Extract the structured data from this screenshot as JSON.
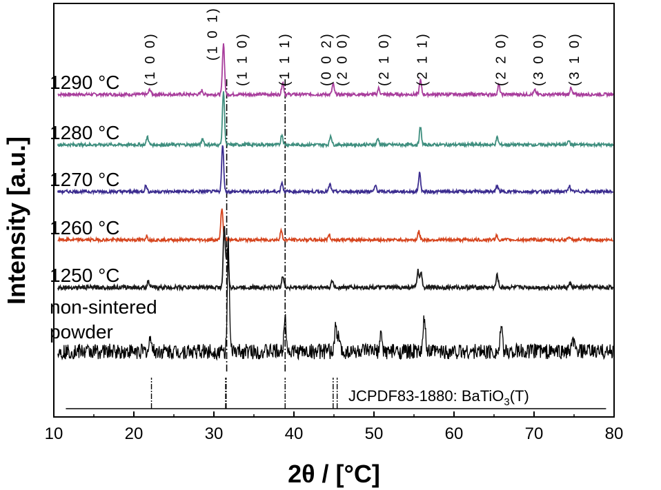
{
  "chart_data": {
    "type": "line",
    "title": "",
    "xlabel": "2θ / [°C]",
    "ylabel": "Intensity [a.u.]",
    "xlim": [
      10,
      80
    ],
    "xticks": [
      10,
      20,
      30,
      40,
      50,
      60,
      70,
      80
    ],
    "series": [
      {
        "name": "1290 °C",
        "color": "#a83d9c",
        "noise": 0.15,
        "peaks": [
          [
            22.0,
            0.25
          ],
          [
            28.5,
            0.2
          ],
          [
            31.2,
            2.5
          ],
          [
            38.6,
            0.6
          ],
          [
            44.9,
            0.5
          ],
          [
            50.6,
            0.3
          ],
          [
            55.8,
            0.7
          ],
          [
            65.6,
            0.45
          ],
          [
            70.1,
            0.2
          ],
          [
            74.6,
            0.3
          ]
        ]
      },
      {
        "name": "1280 °C",
        "color": "#3e8e7e",
        "noise": 0.15,
        "peaks": [
          [
            21.7,
            0.4
          ],
          [
            28.6,
            0.3
          ],
          [
            31.2,
            2.6
          ],
          [
            38.5,
            0.5
          ],
          [
            44.6,
            0.45
          ],
          [
            50.5,
            0.3
          ],
          [
            55.8,
            0.85
          ],
          [
            65.4,
            0.35
          ],
          [
            74.3,
            0.25
          ]
        ]
      },
      {
        "name": "1270 °C",
        "color": "#3b2c8f",
        "noise": 0.15,
        "peaks": [
          [
            21.5,
            0.3
          ],
          [
            31.1,
            2.25
          ],
          [
            38.5,
            0.45
          ],
          [
            44.5,
            0.35
          ],
          [
            50.2,
            0.3
          ],
          [
            55.7,
            0.9
          ],
          [
            65.4,
            0.3
          ],
          [
            74.4,
            0.3
          ]
        ]
      },
      {
        "name": "1260 °C",
        "color": "#d6451e",
        "noise": 0.15,
        "peaks": [
          [
            21.6,
            0.2
          ],
          [
            31.0,
            1.55
          ],
          [
            38.4,
            0.45
          ],
          [
            44.4,
            0.25
          ],
          [
            55.6,
            0.4
          ],
          [
            65.3,
            0.2
          ],
          [
            74.3,
            0.15
          ]
        ]
      },
      {
        "name": "1250 °C",
        "color": "#1a1a1a",
        "noise": 0.2,
        "peaks": [
          [
            21.8,
            0.3
          ],
          [
            31.3,
            3.0
          ],
          [
            31.7,
            1.8
          ],
          [
            38.6,
            0.6
          ],
          [
            44.8,
            0.3
          ],
          [
            55.5,
            0.8
          ],
          [
            55.9,
            0.7
          ],
          [
            65.4,
            0.6
          ],
          [
            74.5,
            0.2
          ]
        ]
      },
      {
        "name": "non-sintered powder",
        "color": "#000000",
        "noise": 0.75,
        "peaks": [
          [
            22.1,
            0.8
          ],
          [
            31.8,
            5.2
          ],
          [
            38.9,
            2.0
          ],
          [
            45.2,
            1.2
          ],
          [
            45.6,
            0.8
          ],
          [
            50.9,
            0.8
          ],
          [
            56.3,
            1.7
          ],
          [
            65.9,
            1.2
          ],
          [
            70.5,
            0.3
          ],
          [
            74.9,
            0.6
          ]
        ]
      }
    ],
    "peak_labels": [
      {
        "text": "(1 0 0)",
        "x": 22
      },
      {
        "text": "(1 0 1)",
        "x": 29.8
      },
      {
        "text": "(1 1 0)",
        "x": 33.5
      },
      {
        "text": "(1 1 1)",
        "x": 38.8
      },
      {
        "text": "(0 0 2)",
        "x": 44.0
      },
      {
        "text": "(2 0 0)",
        "x": 46.0
      },
      {
        "text": "(2 1 0)",
        "x": 51.2
      },
      {
        "text": "(2 1 1)",
        "x": 56.0
      },
      {
        "text": "(2 2 0)",
        "x": 65.8
      },
      {
        "text": "(3 0 0)",
        "x": 70.5
      },
      {
        "text": "(3 1 0)",
        "x": 75.0
      }
    ],
    "dashed_lines": [
      31.6,
      38.9
    ],
    "reference": {
      "label": "JCPDF83-1880: BaTiO",
      "subscript": "3",
      "suffix": "(T)",
      "positions": [
        22.2,
        31.5,
        38.9,
        44.9,
        45.4
      ],
      "strong": [
        31.5
      ]
    }
  }
}
